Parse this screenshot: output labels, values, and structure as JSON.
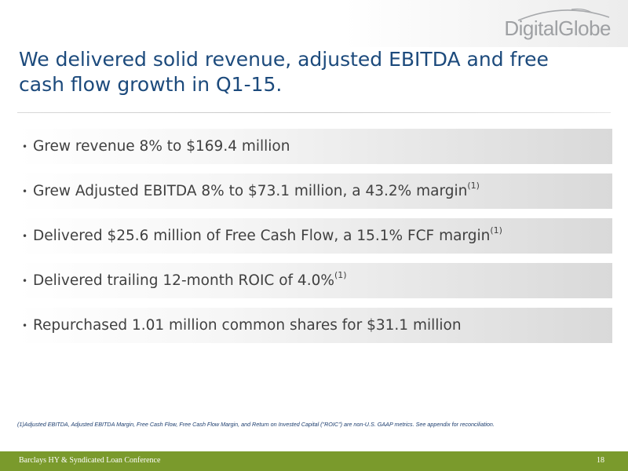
{
  "header": {
    "logo_text": "DigitalGlobe",
    "title": "We delivered solid revenue, adjusted EBITDA and free cash flow growth in Q1-15."
  },
  "bullets": [
    {
      "bullet": "•",
      "text": "Grew revenue 8% to $169.4 million",
      "sup": ""
    },
    {
      "bullet": "•",
      "text": "Grew Adjusted EBITDA  8% to $73.1 million, a 43.2% margin",
      "sup": "(1)"
    },
    {
      "bullet": "•",
      "text": "Delivered $25.6 million of Free Cash Flow, a 15.1% FCF margin",
      "sup": "(1)"
    },
    {
      "bullet": "•",
      "text": "Delivered trailing 12-month ROIC of 4.0%",
      "sup": "(1)"
    },
    {
      "bullet": "•",
      "text": "Repurchased 1.01 million common shares for $31.1 million",
      "sup": ""
    }
  ],
  "footnote": "(1)Adjusted EBITDA, Adjusted EBITDA Margin, Free Cash Flow, Free Cash Flow Margin, and Return on Invested Capital (\"ROIC\") are non-U.S. GAAP metrics. See appendix for reconciliation.",
  "footer": {
    "left": "Barclays HY & Syndicated Loan Conference",
    "page_number": "18"
  },
  "colors": {
    "title": "#1c4a7c",
    "footer_bar": "#7a9a2c",
    "logo": "#9ea0a3"
  }
}
